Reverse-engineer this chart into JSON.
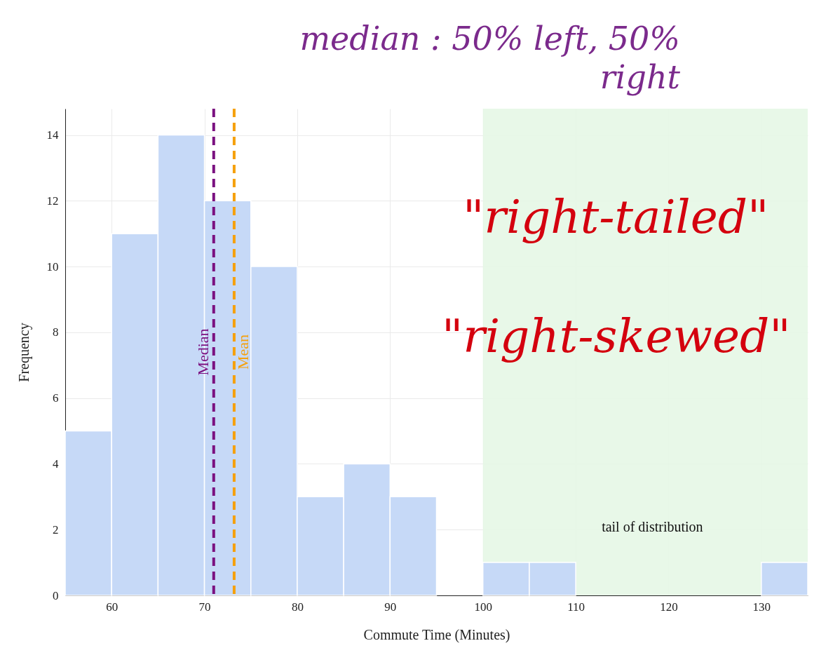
{
  "chart_data": {
    "type": "histogram",
    "xlabel": "Commute Time (Minutes)",
    "ylabel": "Frequency",
    "bins": [
      55,
      60,
      65,
      70,
      75,
      80,
      85,
      90,
      95,
      100,
      105,
      110,
      115,
      120,
      125,
      130,
      135
    ],
    "values": [
      5,
      11,
      14,
      12,
      10,
      3,
      4,
      3,
      0,
      1,
      1,
      0,
      0,
      0,
      0,
      1
    ],
    "color": "#c6d9f7",
    "xlim": [
      55,
      135
    ],
    "xticks": [
      60,
      70,
      80,
      90,
      100,
      110,
      120,
      130
    ],
    "ylim": [
      0,
      14.8
    ],
    "yticks": [
      0,
      2,
      4,
      6,
      8,
      10,
      12,
      14
    ],
    "grid": true,
    "ref_lines": [
      {
        "axis": "x",
        "value": 71,
        "label": "Median",
        "color": "#7b1180",
        "line_style": "dashed"
      },
      {
        "axis": "x",
        "value": 73.2,
        "label": "Mean",
        "color": "#f5a00c",
        "line_style": "dashed"
      }
    ],
    "bands": [
      {
        "axis": "x",
        "from": 100,
        "to": 135,
        "label": "tail of distribution",
        "color": "#e6f7e6"
      }
    ],
    "annotations": [
      "median : 50% left, 50% right",
      "\"right-tailed\"",
      "\"right-skewed\""
    ]
  }
}
